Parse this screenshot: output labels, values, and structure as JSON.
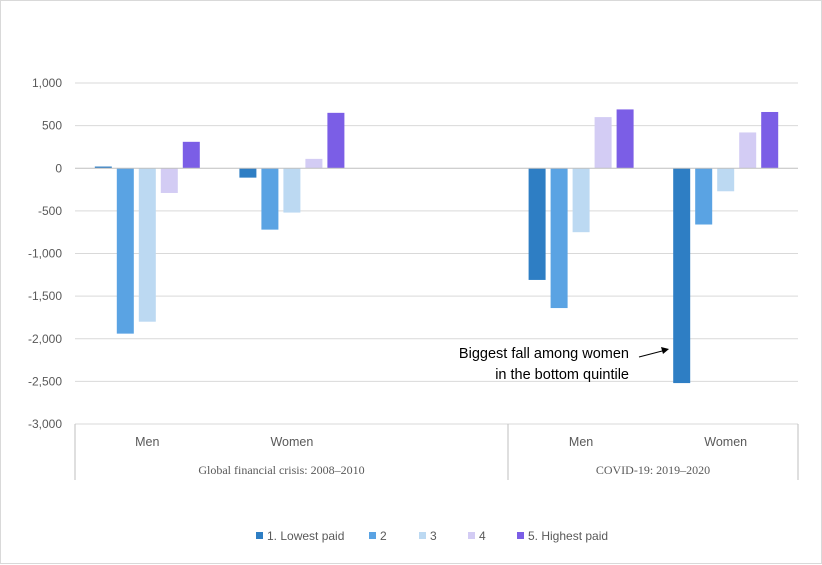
{
  "chart_data": {
    "type": "bar",
    "title": "",
    "xlabel": "",
    "ylabel": "",
    "ylim": [
      -3000,
      1000
    ],
    "yticks": [
      1000,
      500,
      0,
      -500,
      -1000,
      -1500,
      -2000,
      -2500,
      -3000
    ],
    "ytick_labels": [
      "1,000",
      "500",
      "0",
      "-500",
      "-1,000",
      "-1,500",
      "-2,000",
      "-2,500",
      "-3,000"
    ],
    "groups": [
      {
        "label": "Global financial crisis: 2008–2010",
        "categories": [
          {
            "label": "Men",
            "values": [
              20,
              -1940,
              -1800,
              -290,
              310
            ]
          },
          {
            "label": "Women",
            "values": [
              -110,
              -720,
              -520,
              110,
              650
            ]
          }
        ]
      },
      {
        "label": "COVID-19: 2019–2020",
        "categories": [
          {
            "label": "Men",
            "values": [
              -1310,
              -1640,
              -750,
              600,
              690
            ]
          },
          {
            "label": "Women",
            "values": [
              -2520,
              -660,
              -270,
              420,
              660
            ]
          }
        ]
      }
    ],
    "series": [
      {
        "name": "1. Lowest paid",
        "color": "#2e7ec4"
      },
      {
        "name": "2",
        "color": "#5aa3e3"
      },
      {
        "name": "3",
        "color": "#bcd9f2"
      },
      {
        "name": "4",
        "color": "#d3ccf4"
      },
      {
        "name": "5. Highest paid",
        "color": "#7b5ee6"
      }
    ],
    "legend_position": "bottom",
    "grid": true,
    "annotation": {
      "lines": [
        "Biggest fall among women",
        "in the bottom quintile"
      ],
      "target": "COVID-19 Women, 1. Lowest paid"
    }
  }
}
